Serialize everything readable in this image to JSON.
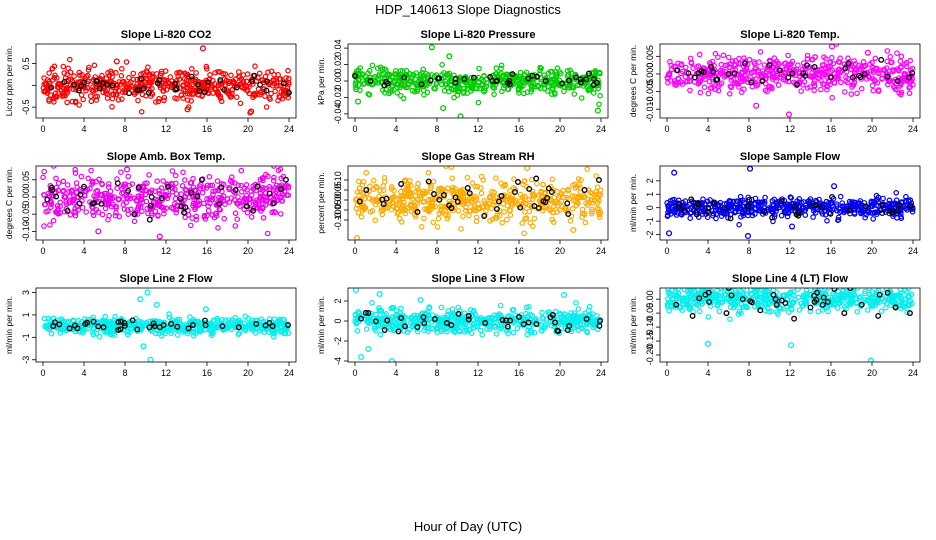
{
  "figure": {
    "title": "HDP_140613  Slope Diagnostics",
    "xlabel": "Hour of Day (UTC)"
  },
  "chart_data": [
    {
      "type": "scatter",
      "title": "Slope Li-820 CO2",
      "ylabel": "Licor ppm per min.",
      "xlim": [
        0,
        24
      ],
      "xticks": [
        0,
        4,
        8,
        12,
        16,
        20,
        24
      ],
      "ylim": [
        -0.75,
        0.95
      ],
      "yticks": [
        -0.5,
        0,
        0.5
      ],
      "ytick_labels": [
        "-0.5",
        "",
        "0.5"
      ],
      "color": "#ff0000",
      "spread": 0.18,
      "black_spread": 0.12,
      "outliers": [
        {
          "x": 15.6,
          "y": 0.85
        },
        {
          "x": 20.3,
          "y": -0.6
        },
        {
          "x": 14.1,
          "y": -0.55
        },
        {
          "x": 7.2,
          "y": 0.55
        }
      ],
      "black_points": [
        {
          "x": 0.8,
          "y": -0.05
        },
        {
          "x": 2.1,
          "y": 0.08
        },
        {
          "x": 3.5,
          "y": -0.12
        },
        {
          "x": 5.2,
          "y": 0.1
        },
        {
          "x": 6.8,
          "y": 0.0
        },
        {
          "x": 8.4,
          "y": -0.18
        },
        {
          "x": 9.6,
          "y": 0.15
        },
        {
          "x": 11.2,
          "y": 0.05
        },
        {
          "x": 12.9,
          "y": -0.1
        },
        {
          "x": 14.5,
          "y": 0.2
        },
        {
          "x": 15.8,
          "y": -0.15
        },
        {
          "x": 17.3,
          "y": 0.12
        },
        {
          "x": 18.9,
          "y": -0.05
        },
        {
          "x": 20.4,
          "y": 0.09
        },
        {
          "x": 21.8,
          "y": -0.12
        },
        {
          "x": 23.5,
          "y": 0.05
        }
      ]
    },
    {
      "type": "scatter",
      "title": "Slope Li-820 Pressure",
      "ylabel": "kPa per min.",
      "xlim": [
        0,
        24
      ],
      "xticks": [
        0,
        4,
        8,
        12,
        16,
        20,
        24
      ],
      "ylim": [
        -0.045,
        0.045
      ],
      "yticks": [
        -0.04,
        -0.02,
        0,
        0.02,
        0.04
      ],
      "ytick_labels": [
        "-0.04",
        "-0.02",
        "0.00",
        "0.02",
        "0.04"
      ],
      "color": "#00cc00",
      "spread": 0.008,
      "black_spread": 0.005,
      "outliers": [
        {
          "x": 7.5,
          "y": 0.041
        },
        {
          "x": 8.6,
          "y": -0.033
        },
        {
          "x": 10.3,
          "y": -0.043
        },
        {
          "x": 23.7,
          "y": -0.036
        },
        {
          "x": 0.3,
          "y": -0.025
        },
        {
          "x": 9.2,
          "y": 0.03
        }
      ],
      "black_points": [
        {
          "x": 1.5,
          "y": 0.0
        },
        {
          "x": 3.2,
          "y": -0.003
        },
        {
          "x": 4.8,
          "y": 0.004
        },
        {
          "x": 6.5,
          "y": -0.004
        },
        {
          "x": 8.1,
          "y": 0.003
        },
        {
          "x": 9.8,
          "y": -0.002
        },
        {
          "x": 11.6,
          "y": 0.004
        },
        {
          "x": 13.4,
          "y": 0.0
        },
        {
          "x": 15.1,
          "y": -0.004
        },
        {
          "x": 16.9,
          "y": 0.003
        },
        {
          "x": 18.6,
          "y": 0.0
        },
        {
          "x": 20.2,
          "y": -0.003
        },
        {
          "x": 22.0,
          "y": 0.002
        },
        {
          "x": 23.6,
          "y": -0.002
        }
      ]
    },
    {
      "type": "scatter",
      "title": "Slope Li-820 Temp.",
      "ylabel": "degrees C per min.",
      "xlim": [
        0,
        24
      ],
      "xticks": [
        0,
        4,
        8,
        12,
        16,
        20,
        24
      ],
      "ylim": [
        -0.0125,
        0.0085
      ],
      "yticks": [
        -0.01,
        -0.005,
        0,
        0.005
      ],
      "ytick_labels": [
        "-0.010",
        "-0.005",
        "0.000",
        "0.005"
      ],
      "color": "#ff00ff",
      "spread": 0.0025,
      "black_spread": 0.0015,
      "outliers": [
        {
          "x": 11.9,
          "y": -0.0115
        },
        {
          "x": 16.1,
          "y": 0.0078
        },
        {
          "x": 8.7,
          "y": -0.009
        },
        {
          "x": 19.6,
          "y": 0.006
        }
      ],
      "black_points": [
        {
          "x": 1.0,
          "y": 0.001
        },
        {
          "x": 2.7,
          "y": -0.001
        },
        {
          "x": 4.3,
          "y": 0.002
        },
        {
          "x": 6.0,
          "y": 0.0
        },
        {
          "x": 7.6,
          "y": 0.003
        },
        {
          "x": 9.3,
          "y": -0.002
        },
        {
          "x": 11.0,
          "y": 0.001
        },
        {
          "x": 12.7,
          "y": -0.003
        },
        {
          "x": 14.4,
          "y": 0.002
        },
        {
          "x": 16.0,
          "y": -0.001
        },
        {
          "x": 17.7,
          "y": 0.003
        },
        {
          "x": 19.3,
          "y": 0.0
        },
        {
          "x": 20.9,
          "y": 0.004
        },
        {
          "x": 22.5,
          "y": -0.002
        }
      ]
    },
    {
      "type": "scatter",
      "title": "Slope Amb. Box Temp.",
      "ylabel": "degrees C per min.",
      "xlim": [
        0,
        24
      ],
      "xticks": [
        0,
        4,
        8,
        12,
        16,
        20,
        24
      ],
      "ylim": [
        -0.125,
        0.09
      ],
      "yticks": [
        -0.1,
        -0.05,
        0,
        0.05
      ],
      "ytick_labels": [
        "-0.10",
        "-0.05",
        "0.00",
        "0.05"
      ],
      "color": "#ee00ee",
      "spread": 0.035,
      "black_spread": 0.025,
      "outliers": [
        {
          "x": 8.2,
          "y": 0.08
        },
        {
          "x": 11.4,
          "y": -0.115
        },
        {
          "x": 5.4,
          "y": -0.1
        }
      ],
      "black_points": [
        {
          "x": 0.9,
          "y": 0.02
        },
        {
          "x": 2.4,
          "y": -0.04
        },
        {
          "x": 4.0,
          "y": 0.03
        },
        {
          "x": 5.7,
          "y": -0.02
        },
        {
          "x": 7.3,
          "y": 0.04
        },
        {
          "x": 8.9,
          "y": -0.05
        },
        {
          "x": 10.6,
          "y": 0.0
        },
        {
          "x": 12.2,
          "y": 0.03
        },
        {
          "x": 13.9,
          "y": -0.03
        },
        {
          "x": 15.5,
          "y": 0.05
        },
        {
          "x": 17.2,
          "y": -0.02
        },
        {
          "x": 18.8,
          "y": 0.02
        },
        {
          "x": 20.5,
          "y": -0.04
        },
        {
          "x": 22.1,
          "y": 0.01
        },
        {
          "x": 23.7,
          "y": 0.05
        }
      ]
    },
    {
      "type": "scatter",
      "title": "Slope Gas Stream RH",
      "ylabel": "percent per min.",
      "xlim": [
        0,
        24
      ],
      "xticks": [
        0,
        4,
        8,
        12,
        16,
        20,
        24
      ],
      "ylim": [
        -0.2,
        0.17
      ],
      "yticks": [
        -0.1,
        -0.05,
        0,
        0.05,
        0.1
      ],
      "ytick_labels": [
        "-0.10",
        "-0.05",
        "0.00",
        "0.05",
        "0.10"
      ],
      "color": "#ffaa00",
      "spread": 0.05,
      "black_spread": 0.04,
      "outliers": [
        {
          "x": 0.2,
          "y": -0.19
        },
        {
          "x": 16.8,
          "y": 0.16
        },
        {
          "x": 21.3,
          "y": -0.15
        }
      ],
      "black_points": [
        {
          "x": 1.1,
          "y": 0.05
        },
        {
          "x": 2.8,
          "y": -0.02
        },
        {
          "x": 4.5,
          "y": 0.08
        },
        {
          "x": 6.1,
          "y": -0.06
        },
        {
          "x": 7.7,
          "y": 0.03
        },
        {
          "x": 9.4,
          "y": -0.04
        },
        {
          "x": 11.0,
          "y": 0.06
        },
        {
          "x": 12.6,
          "y": -0.08
        },
        {
          "x": 14.3,
          "y": 0.02
        },
        {
          "x": 15.9,
          "y": 0.09
        },
        {
          "x": 17.5,
          "y": -0.03
        },
        {
          "x": 19.2,
          "y": 0.04
        },
        {
          "x": 20.8,
          "y": -0.07
        },
        {
          "x": 22.4,
          "y": 0.05
        },
        {
          "x": 23.8,
          "y": 0.1
        }
      ]
    },
    {
      "type": "scatter",
      "title": "Slope Sample Flow",
      "ylabel": "ml/min per min.",
      "xlim": [
        0,
        24
      ],
      "xticks": [
        0,
        4,
        8,
        12,
        16,
        20,
        24
      ],
      "ylim": [
        -2.4,
        3.1
      ],
      "yticks": [
        -2,
        -1,
        0,
        1,
        2
      ],
      "ytick_labels": [
        "-2",
        "-1",
        "0",
        "1",
        "2"
      ],
      "color": "#0000ee",
      "spread": 0.35,
      "black_spread": 0.3,
      "outliers": [
        {
          "x": 0.7,
          "y": 2.6
        },
        {
          "x": 8.1,
          "y": 2.9
        },
        {
          "x": 7.9,
          "y": -2.1
        },
        {
          "x": 16.3,
          "y": 1.6
        },
        {
          "x": 12.2,
          "y": -1.4
        },
        {
          "x": 0.2,
          "y": -1.9
        }
      ],
      "black_points": [
        {
          "x": 1.2,
          "y": 0.3
        },
        {
          "x": 2.9,
          "y": -0.5
        },
        {
          "x": 4.6,
          "y": 0.4
        },
        {
          "x": 6.2,
          "y": -0.8
        },
        {
          "x": 7.9,
          "y": 0.1
        },
        {
          "x": 9.5,
          "y": -0.3
        },
        {
          "x": 11.2,
          "y": 0.5
        },
        {
          "x": 12.8,
          "y": -0.6
        },
        {
          "x": 14.5,
          "y": 0.2
        },
        {
          "x": 16.1,
          "y": 0.8
        },
        {
          "x": 17.8,
          "y": -0.2
        },
        {
          "x": 19.4,
          "y": 0.1
        },
        {
          "x": 21.0,
          "y": -0.4
        },
        {
          "x": 22.7,
          "y": 0.2
        }
      ]
    },
    {
      "type": "scatter",
      "title": "Slope Line 2 Flow",
      "ylabel": "ml/min per min.",
      "xlim": [
        0,
        24
      ],
      "xticks": [
        0,
        4,
        8,
        12,
        16,
        20,
        24
      ],
      "ylim": [
        -3.2,
        3.4
      ],
      "yticks": [
        -3,
        -1,
        1,
        3
      ],
      "ytick_labels": [
        "-3",
        "-1",
        "1",
        "3"
      ],
      "color": "#00eeee",
      "spread": 0.35,
      "black_spread": 0.3,
      "outliers": [
        {
          "x": 10.2,
          "y": 3.0
        },
        {
          "x": 10.5,
          "y": -3.0
        },
        {
          "x": 11.1,
          "y": 1.9
        },
        {
          "x": 9.5,
          "y": 2.4
        },
        {
          "x": 9.8,
          "y": -1.8
        },
        {
          "x": 15.9,
          "y": 1.5
        }
      ],
      "black_points": [
        {
          "x": 1.0,
          "y": 0.0
        },
        {
          "x": 2.6,
          "y": -0.2
        },
        {
          "x": 4.3,
          "y": 0.3
        },
        {
          "x": 5.9,
          "y": -0.1
        },
        {
          "x": 7.6,
          "y": 0.4
        },
        {
          "x": 9.2,
          "y": -0.3
        },
        {
          "x": 10.9,
          "y": 0.0
        },
        {
          "x": 12.5,
          "y": 0.2
        },
        {
          "x": 14.2,
          "y": -0.2
        },
        {
          "x": 15.8,
          "y": 0.5
        },
        {
          "x": 17.5,
          "y": 0.0
        },
        {
          "x": 19.1,
          "y": -0.1
        },
        {
          "x": 20.8,
          "y": 0.2
        },
        {
          "x": 22.4,
          "y": 0.0
        },
        {
          "x": 23.9,
          "y": 0.1
        }
      ]
    },
    {
      "type": "scatter",
      "title": "Slope Line 3 Flow",
      "ylabel": "ml/min per min.",
      "xlim": [
        0,
        24
      ],
      "xticks": [
        0,
        4,
        8,
        12,
        16,
        20,
        24
      ],
      "ylim": [
        -4.1,
        3.3
      ],
      "yticks": [
        -4,
        -2,
        0,
        2
      ],
      "ytick_labels": [
        "-4",
        "-2",
        "0",
        "2"
      ],
      "color": "#00eeee",
      "spread": 0.6,
      "black_spread": 0.5,
      "outliers": [
        {
          "x": 0.1,
          "y": 3.1
        },
        {
          "x": 0.6,
          "y": -3.6
        },
        {
          "x": 3.6,
          "y": -4.0
        },
        {
          "x": 2.4,
          "y": 2.7
        },
        {
          "x": 20.4,
          "y": 2.6
        },
        {
          "x": 1.3,
          "y": -2.8
        },
        {
          "x": 6.4,
          "y": 2.1
        }
      ],
      "black_points": [
        {
          "x": 1.3,
          "y": 0.8
        },
        {
          "x": 2.9,
          "y": -0.9
        },
        {
          "x": 4.5,
          "y": 0.3
        },
        {
          "x": 6.1,
          "y": -0.6
        },
        {
          "x": 7.8,
          "y": 0.2
        },
        {
          "x": 9.4,
          "y": -0.4
        },
        {
          "x": 11.1,
          "y": 0.5
        },
        {
          "x": 12.7,
          "y": -0.2
        },
        {
          "x": 14.4,
          "y": 0.1
        },
        {
          "x": 16.0,
          "y": 0.4
        },
        {
          "x": 17.7,
          "y": -0.3
        },
        {
          "x": 19.3,
          "y": 0.6
        },
        {
          "x": 20.9,
          "y": -0.5
        },
        {
          "x": 22.6,
          "y": 0.2
        },
        {
          "x": 23.9,
          "y": 0.0
        }
      ]
    },
    {
      "type": "scatter",
      "title": "Slope Line 4 (LT) Flow",
      "ylabel": "ml/min per min.",
      "xlim": [
        0,
        24
      ],
      "xticks": [
        0,
        4,
        8,
        12,
        16,
        20,
        24
      ],
      "ylim": [
        -0.225,
        0.04
      ],
      "yticks": [
        -0.2,
        -0.15,
        -0.1,
        -0.05,
        0
      ],
      "ytick_labels": [
        "-0.20",
        "-0.15",
        "-0.10",
        "-0.05",
        "0.00"
      ],
      "color": "#00eeee",
      "spread": 0.022,
      "black_spread": 0.02,
      "outliers": [
        {
          "x": 4.0,
          "y": -0.16
        },
        {
          "x": 12.1,
          "y": -0.165
        },
        {
          "x": 19.9,
          "y": -0.22
        },
        {
          "x": 8.2,
          "y": 0.02
        }
      ],
      "black_points": [
        {
          "x": 0.9,
          "y": -0.02
        },
        {
          "x": 2.5,
          "y": -0.06
        },
        {
          "x": 4.1,
          "y": -0.01
        },
        {
          "x": 5.8,
          "y": -0.05
        },
        {
          "x": 7.4,
          "y": 0.0
        },
        {
          "x": 9.1,
          "y": -0.04
        },
        {
          "x": 10.7,
          "y": -0.02
        },
        {
          "x": 12.4,
          "y": -0.07
        },
        {
          "x": 14.0,
          "y": -0.03
        },
        {
          "x": 15.7,
          "y": -0.01
        },
        {
          "x": 17.3,
          "y": -0.05
        },
        {
          "x": 19.0,
          "y": -0.02
        },
        {
          "x": 20.6,
          "y": -0.06
        },
        {
          "x": 22.3,
          "y": -0.03
        },
        {
          "x": 23.7,
          "y": -0.05
        }
      ]
    }
  ]
}
